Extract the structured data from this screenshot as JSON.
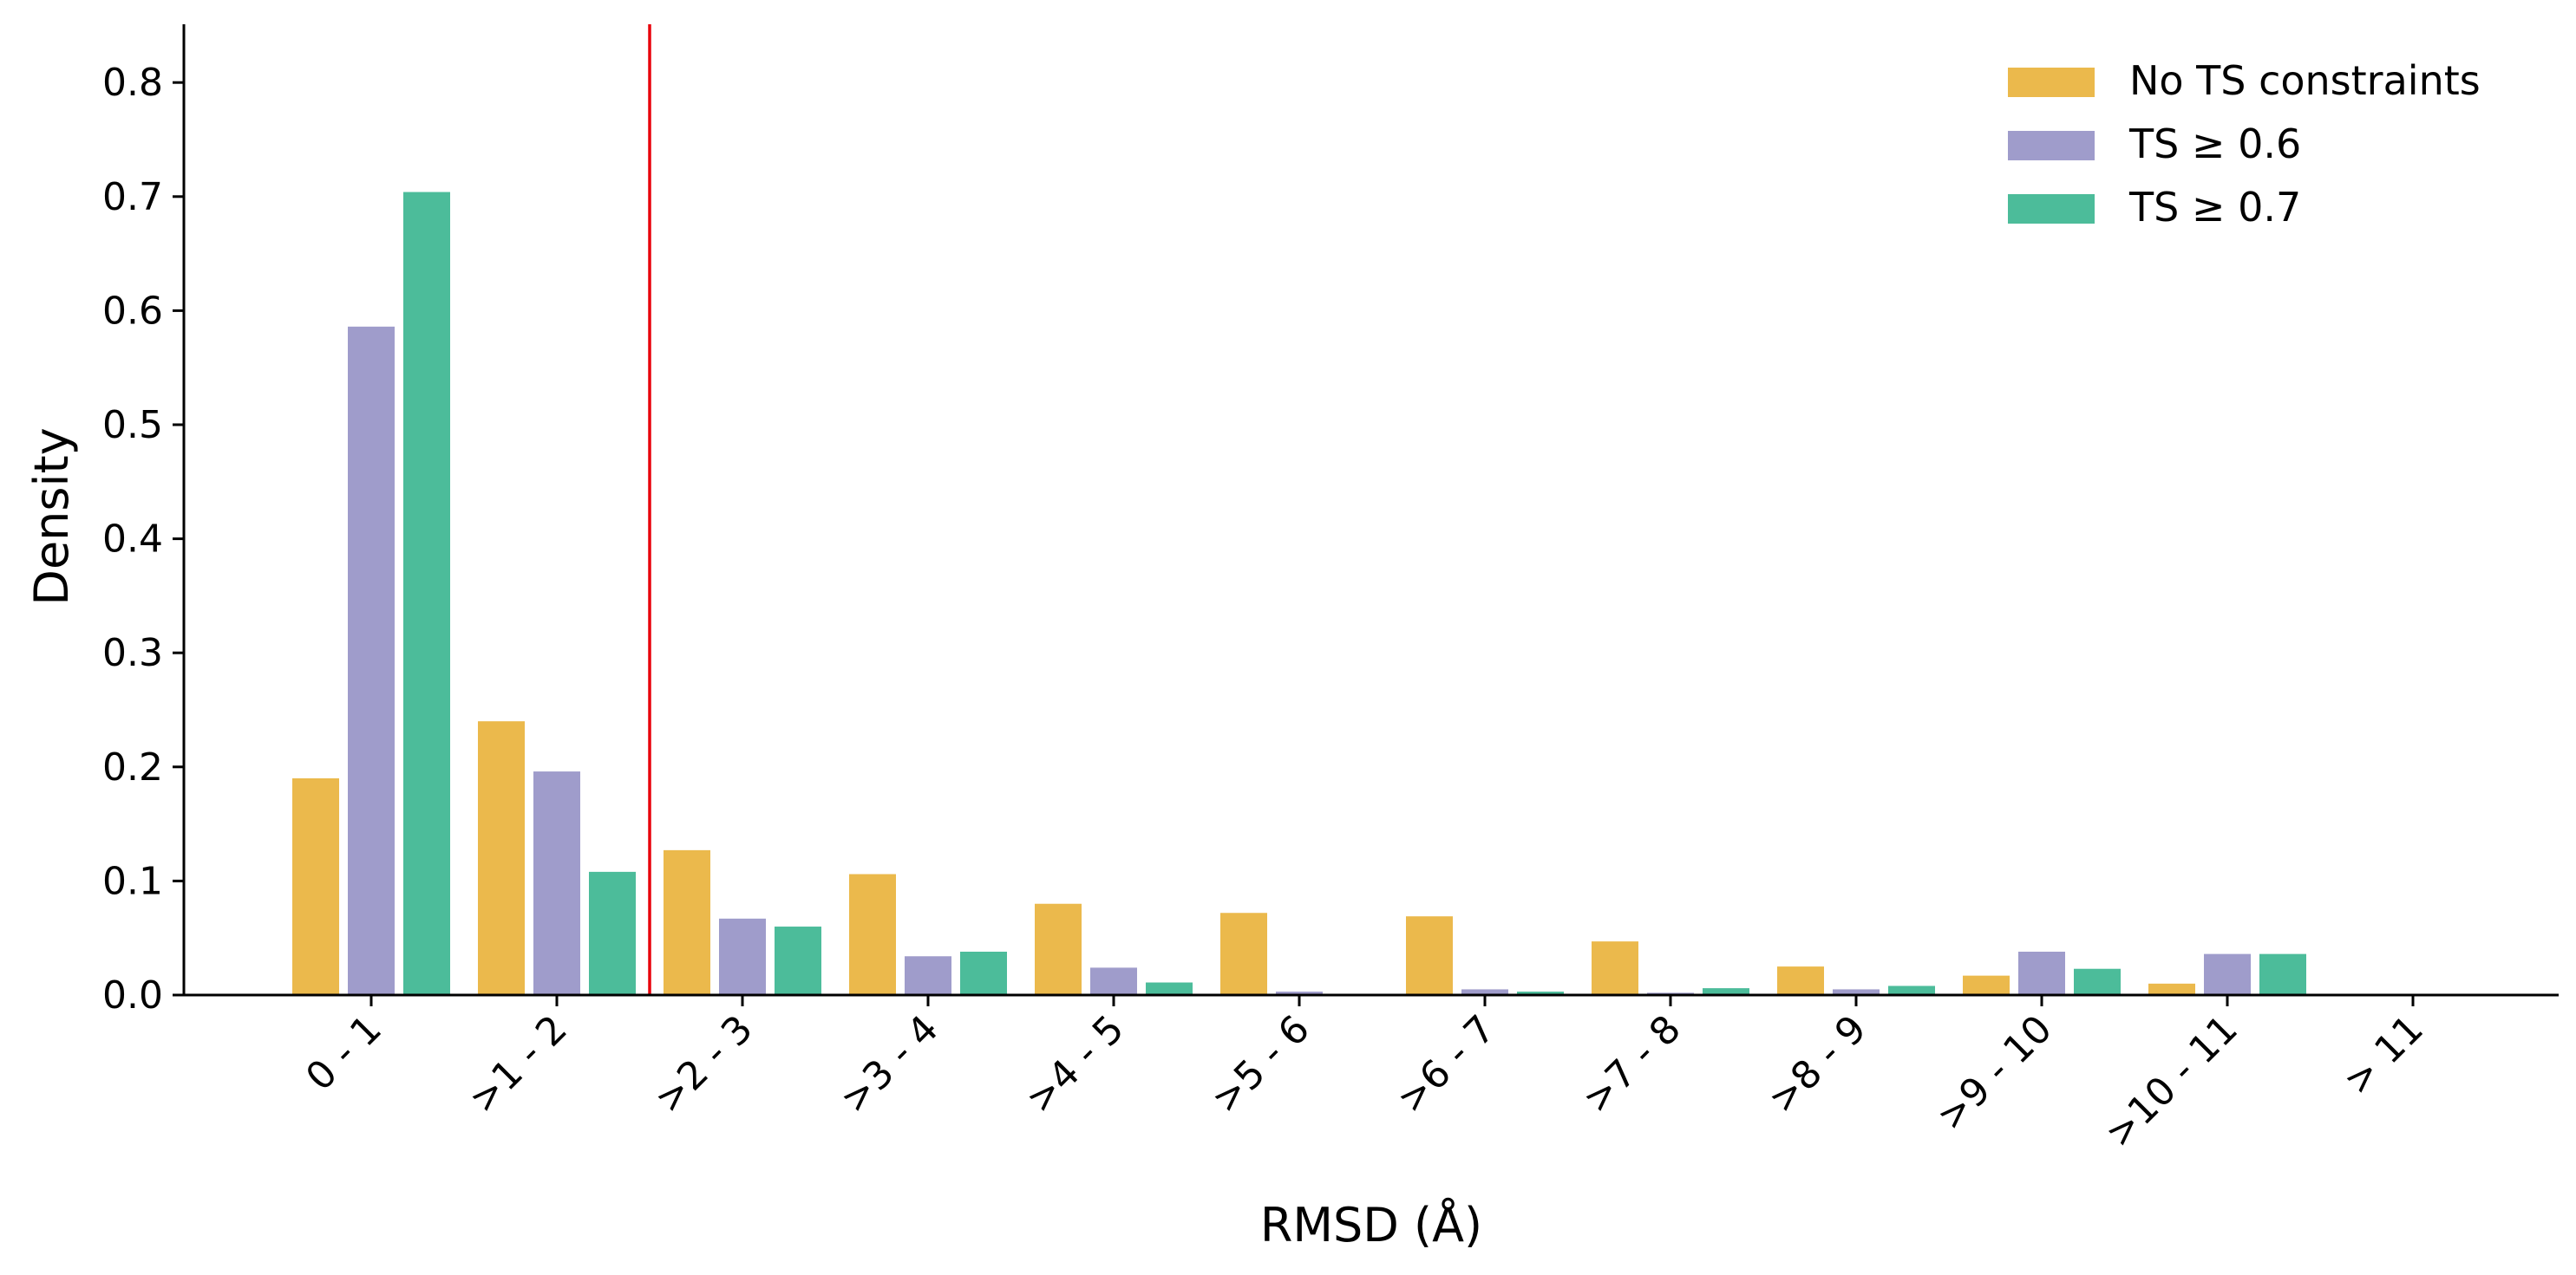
{
  "chart_data": {
    "type": "bar",
    "title": "",
    "xlabel": "RMSD (Å)",
    "ylabel": "Density",
    "ylim": [
      0,
      0.85
    ],
    "yticks": [
      "0.0",
      "0.1",
      "0.2",
      "0.3",
      "0.4",
      "0.5",
      "0.6",
      "0.7",
      "0.8"
    ],
    "categories": [
      "0 - 1",
      ">1 - 2",
      ">2 - 3",
      ">3 - 4",
      ">4 - 5",
      ">5 - 6",
      ">6 - 7",
      ">7 - 8",
      ">8 - 9",
      ">9 - 10",
      ">10 - 11",
      "> 11"
    ],
    "series": [
      {
        "name": "No TS constraints",
        "color": "#ebb94c",
        "values": [
          0.19,
          0.24,
          0.127,
          0.106,
          0.08,
          0.072,
          0.069,
          0.047,
          0.025,
          0.017,
          0.01,
          0
        ]
      },
      {
        "name": "TS ≥ 0.6",
        "color": "#9f9ccb",
        "values": [
          0.586,
          0.196,
          0.067,
          0.034,
          0.024,
          0.003,
          0.005,
          0.002,
          0.005,
          0.038,
          0.036,
          0
        ]
      },
      {
        "name": "TS ≥ 0.7",
        "color": "#4cbc9a",
        "values": [
          0.704,
          0.108,
          0.06,
          0.038,
          0.011,
          0.001,
          0.003,
          0.006,
          0.008,
          0.023,
          0.036,
          0
        ]
      }
    ],
    "reference_line": {
      "x_between_categories": [
        ">1 - 2",
        ">2 - 3"
      ],
      "color": "#e8000b"
    },
    "legend_position": "top-right",
    "grid": false
  }
}
